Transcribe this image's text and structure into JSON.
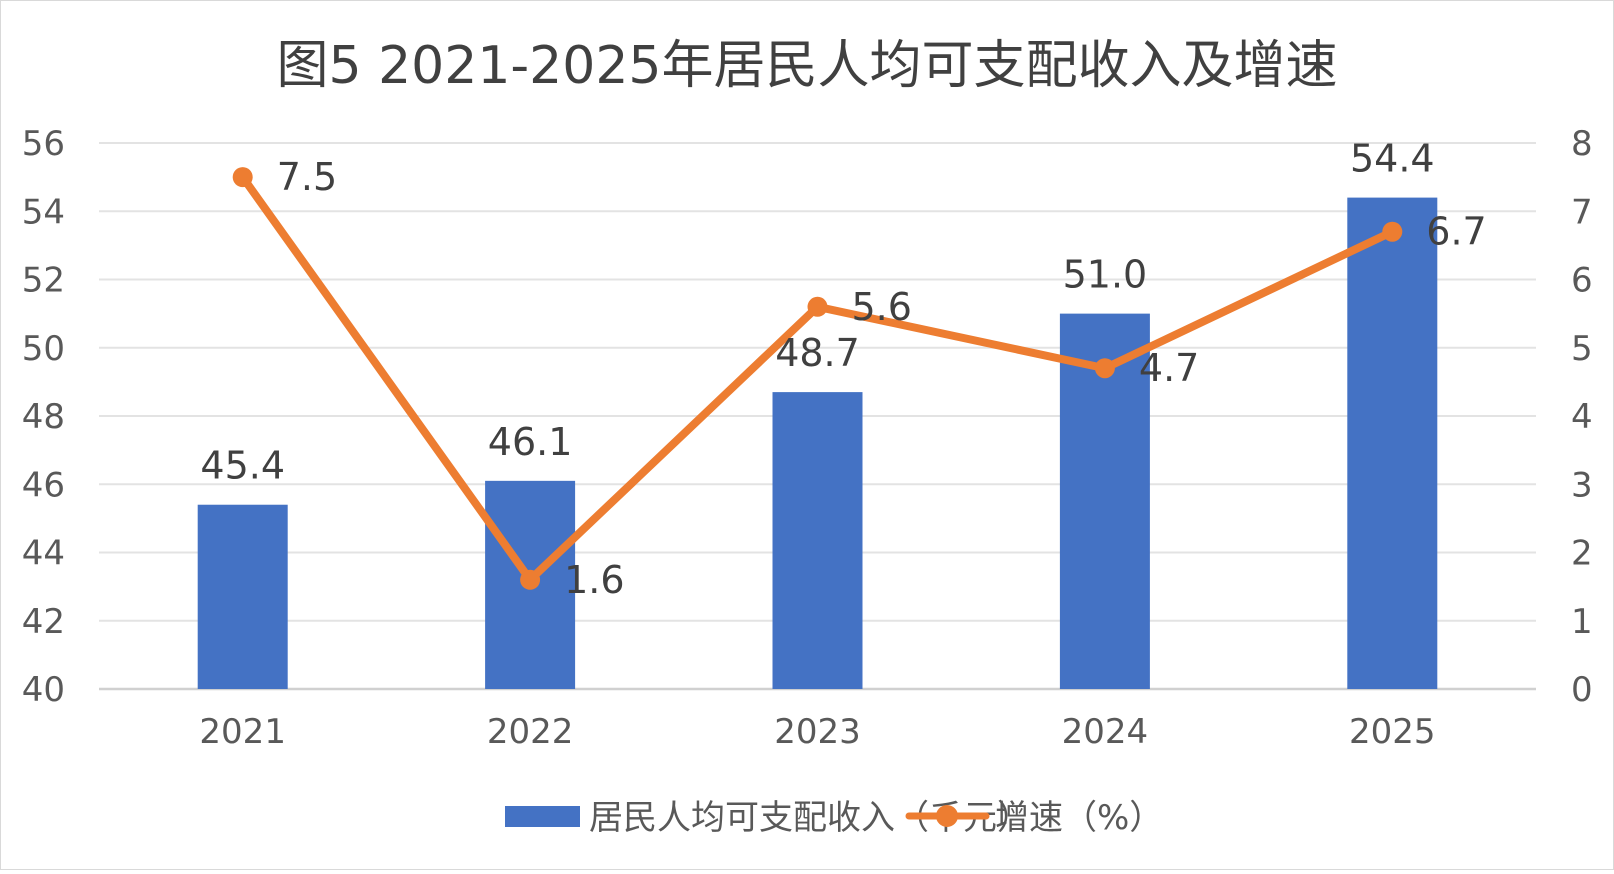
{
  "chart_data": {
    "type": "bar+line",
    "title": "图5 2021-2025年居民人均可支配收入及增速",
    "categories": [
      "2021",
      "2022",
      "2023",
      "2024",
      "2025"
    ],
    "series": [
      {
        "name": "居民人均可支配收入（千元）",
        "type": "bar",
        "axis": "left",
        "values": [
          45.4,
          46.1,
          48.7,
          51.0,
          54.4
        ],
        "labels": [
          "45.4",
          "46.1",
          "48.7",
          "51.0",
          "54.4"
        ],
        "color": "#4472C4"
      },
      {
        "name": "增速（%）",
        "type": "line",
        "axis": "right",
        "values": [
          7.5,
          1.6,
          5.6,
          4.7,
          6.7
        ],
        "labels": [
          "7.5",
          "1.6",
          "5.6",
          "4.7",
          "6.7"
        ],
        "color": "#ED7D31"
      }
    ],
    "ylim_left": [
      40,
      56
    ],
    "yticks_left": [
      "40",
      "42",
      "44",
      "46",
      "48",
      "50",
      "52",
      "54",
      "56"
    ],
    "ylim_right": [
      0,
      8
    ],
    "yticks_right": [
      "0",
      "1",
      "2",
      "3",
      "4",
      "5",
      "6",
      "7",
      "8"
    ],
    "grid": true,
    "legend": "bottom"
  }
}
